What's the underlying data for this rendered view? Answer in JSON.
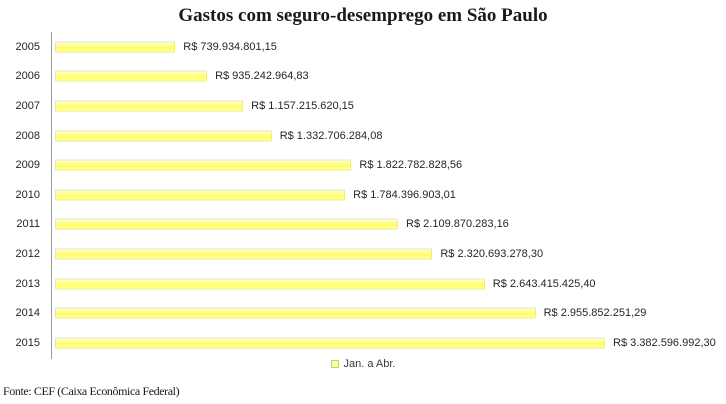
{
  "title": "Gastos com seguro-desemprego em São Paulo",
  "legend": {
    "label": "Jan. a Abr."
  },
  "footer": {
    "source": "Fonte: CEF (Caixa Econômica Federal)"
  },
  "colors": {
    "bar_fill_top": "#ffffd6",
    "bar_fill_mid": "#ffff99",
    "bar_fill_core": "#ffff5c",
    "bar_fill_bottom": "#fafac4",
    "bar_border": "#e9e99e",
    "axis_line": "#9a9a9a",
    "text": "#262626"
  },
  "chart_data": {
    "type": "bar",
    "orientation": "horizontal",
    "title": "Gastos com seguro-desemprego em São Paulo",
    "categories": [
      "2005",
      "2006",
      "2007",
      "2008",
      "2009",
      "2010",
      "2011",
      "2012",
      "2013",
      "2014",
      "2015"
    ],
    "values": [
      739934801.15,
      935242964.83,
      1157215620.15,
      1332706284.08,
      1822782828.56,
      1784396903.01,
      2109870283.16,
      2320693278.3,
      2643415425.4,
      2955852251.29,
      3382596992.3
    ],
    "data_labels": [
      "R$ 739.934.801,15",
      "R$ 935.242.964,83",
      "R$ 1.157.215.620,15",
      "R$ 1.332.706.284,08",
      "R$ 1.822.782.828,56",
      "R$ 1.784.396.903,01",
      "R$ 2.109.870.283,16",
      "R$ 2.320.693.278,30",
      "R$ 2.643.415.425,40",
      "R$ 2.955.852.251,29",
      "R$ 3.382.596.992,30"
    ],
    "series_name": "Jan. a Abr.",
    "xlabel": "",
    "ylabel": "",
    "xlim": [
      0,
      3382596992.3
    ],
    "grid": false,
    "legend_position": "bottom",
    "currency": "R$"
  }
}
